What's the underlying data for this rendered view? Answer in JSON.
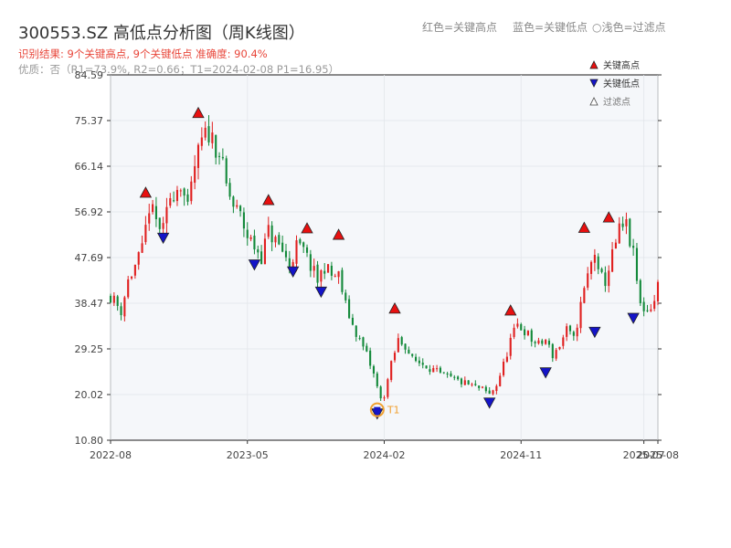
{
  "header": {
    "title": "300553.SZ 高低点分析图（周K线图）",
    "hint_red": "红色=关键高点",
    "hint_blue": "蓝色=关键低点",
    "hint_light": "○浅色=过滤点",
    "result_text": "识别结果: 9个关键高点, 9个关键低点   准确度: 90.4%",
    "quality_text": "优质：否（R1=73.9%, R2=0.66；T1=2024-02-08 P1=16.95）"
  },
  "legend": {
    "high": "关键高点",
    "low": "关键低点",
    "filtered": "过滤点"
  },
  "colors": {
    "up": "#e02020",
    "down": "#13893a",
    "high_marker": "#e81010",
    "low_marker": "#1414c8",
    "t1_marker": "#f0a030",
    "plot_bg": "#f5f7fa"
  },
  "chart_data": {
    "type": "candlestick",
    "title": "300553.SZ 高低点分析图（周K线图）",
    "y_ticks": [
      "10.80",
      "20.02",
      "29.25",
      "38.47",
      "47.69",
      "56.92",
      "66.14",
      "75.37",
      "84.59"
    ],
    "ylim": [
      10.8,
      84.59
    ],
    "x_ticks": [
      {
        "label": "2022-08",
        "t": 0
      },
      {
        "label": "2023-05",
        "t": 39
      },
      {
        "label": "2024-02",
        "t": 78
      },
      {
        "label": "2024-11",
        "t": 117
      },
      {
        "label": "2025-07",
        "t": 152
      },
      {
        "label": "2025-08",
        "t": 156
      }
    ],
    "xlim": [
      0,
      156
    ],
    "grid": true,
    "legend_position": "top-right",
    "price_path": [
      [
        0,
        40
      ],
      [
        3,
        37
      ],
      [
        5,
        43
      ],
      [
        9,
        49
      ],
      [
        11,
        58
      ],
      [
        13,
        55
      ],
      [
        15,
        53
      ],
      [
        17,
        60
      ],
      [
        20,
        63
      ],
      [
        22,
        57
      ],
      [
        24,
        66
      ],
      [
        26,
        71
      ],
      [
        28,
        73
      ],
      [
        31,
        69
      ],
      [
        33,
        62
      ],
      [
        35,
        58
      ],
      [
        37,
        56
      ],
      [
        39,
        52
      ],
      [
        41,
        50
      ],
      [
        43,
        48
      ],
      [
        45,
        53
      ],
      [
        47,
        51
      ],
      [
        49,
        49
      ],
      [
        51,
        46
      ],
      [
        53,
        50
      ],
      [
        55,
        49
      ],
      [
        57,
        46
      ],
      [
        59,
        43
      ],
      [
        61,
        46
      ],
      [
        63,
        44
      ],
      [
        65,
        44
      ],
      [
        67,
        38
      ],
      [
        69,
        34
      ],
      [
        71,
        31
      ],
      [
        73,
        28
      ],
      [
        75,
        24
      ],
      [
        77,
        19
      ],
      [
        78,
        20
      ],
      [
        80,
        26
      ],
      [
        82,
        31
      ],
      [
        84,
        30
      ],
      [
        86,
        27
      ],
      [
        90,
        26
      ],
      [
        94,
        24
      ],
      [
        98,
        23
      ],
      [
        102,
        22
      ],
      [
        106,
        21
      ],
      [
        108,
        20
      ],
      [
        110,
        22
      ],
      [
        112,
        26
      ],
      [
        114,
        31
      ],
      [
        116,
        34
      ],
      [
        118,
        33
      ],
      [
        120,
        31
      ],
      [
        122,
        30
      ],
      [
        124,
        31
      ],
      [
        126,
        28
      ],
      [
        128,
        30
      ],
      [
        130,
        33
      ],
      [
        132,
        31
      ],
      [
        134,
        38
      ],
      [
        136,
        44
      ],
      [
        138,
        49
      ],
      [
        139,
        44
      ],
      [
        141,
        43
      ],
      [
        143,
        48
      ],
      [
        145,
        53
      ],
      [
        147,
        54
      ],
      [
        149,
        48
      ],
      [
        150,
        43
      ],
      [
        151,
        38
      ],
      [
        153,
        37
      ],
      [
        155,
        39
      ],
      [
        156,
        42
      ]
    ],
    "key_highs": [
      {
        "t": 10,
        "price": 59.5
      },
      {
        "t": 25,
        "price": 75.6
      },
      {
        "t": 45,
        "price": 58.0
      },
      {
        "t": 56,
        "price": 52.3
      },
      {
        "t": 65,
        "price": 51.0
      },
      {
        "t": 81,
        "price": 36.1
      },
      {
        "t": 114,
        "price": 35.7
      },
      {
        "t": 135,
        "price": 52.4
      },
      {
        "t": 142,
        "price": 54.5
      }
    ],
    "key_lows": [
      {
        "t": 15,
        "price": 53.0
      },
      {
        "t": 41,
        "price": 47.6
      },
      {
        "t": 52,
        "price": 46.2
      },
      {
        "t": 60,
        "price": 42.1
      },
      {
        "t": 76,
        "price": 17.5
      },
      {
        "t": 108,
        "price": 19.7
      },
      {
        "t": 124,
        "price": 25.8
      },
      {
        "t": 138,
        "price": 34.0
      },
      {
        "t": 149,
        "price": 36.8
      }
    ],
    "t1": {
      "label": "T1",
      "t": 76,
      "price": 16.95
    }
  }
}
